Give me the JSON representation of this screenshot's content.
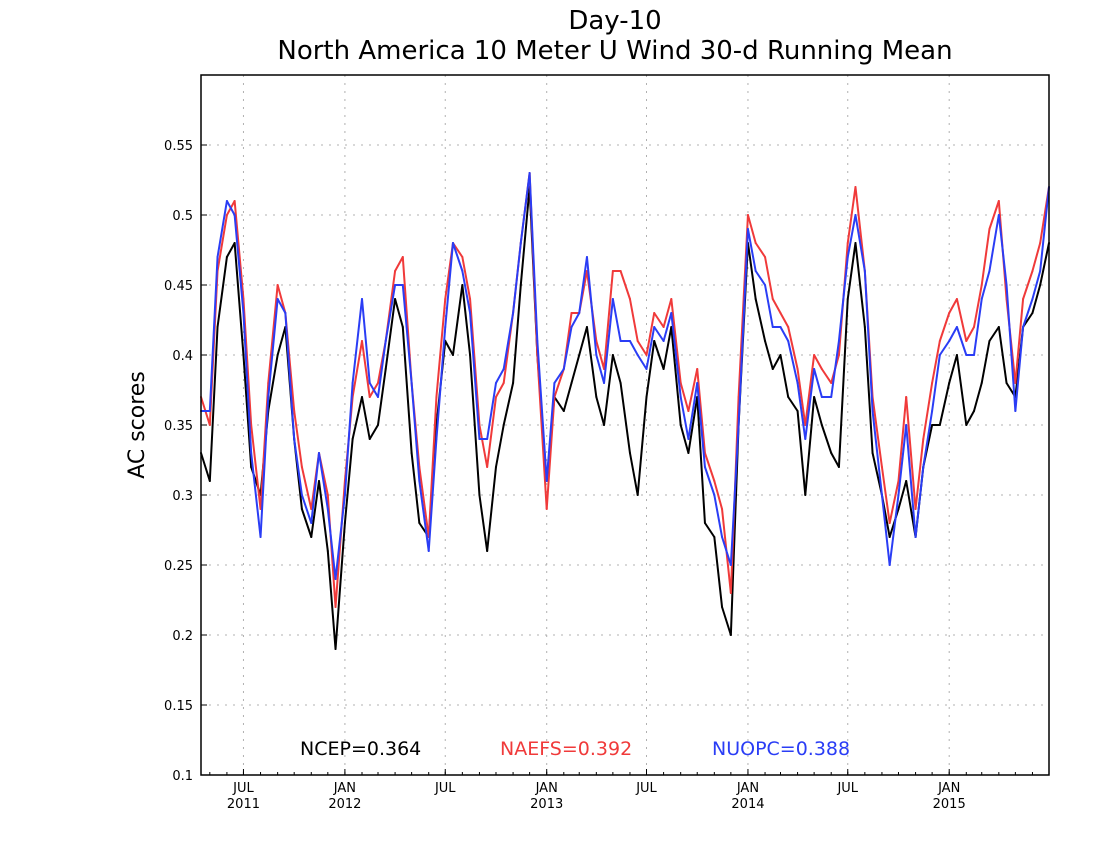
{
  "chart_data": {
    "type": "line",
    "title": "Day-10",
    "subtitle": "North America 10 Meter U Wind 30-d Running Mean",
    "ylabel": "AC scores",
    "xlabel": "",
    "ylim": [
      0.1,
      0.6
    ],
    "xlim": [
      "2011-04-15",
      "2015-07-01"
    ],
    "grid": true,
    "yticks": [
      "0.1",
      "0.15",
      "0.2",
      "0.25",
      "0.3",
      "0.35",
      "0.4",
      "0.45",
      "0.5",
      "0.55"
    ],
    "xticks": [
      {
        "date": "2011-07-01",
        "month": "JUL",
        "year": "2011"
      },
      {
        "date": "2012-01-01",
        "month": "JAN",
        "year": "2012"
      },
      {
        "date": "2012-07-01",
        "month": "JUL",
        "year": ""
      },
      {
        "date": "2013-01-01",
        "month": "JAN",
        "year": "2013"
      },
      {
        "date": "2013-07-01",
        "month": "JUL",
        "year": ""
      },
      {
        "date": "2014-01-01",
        "month": "JAN",
        "year": "2014"
      },
      {
        "date": "2014-07-01",
        "month": "JUL",
        "year": ""
      },
      {
        "date": "2015-01-01",
        "month": "JAN",
        "year": "2015"
      }
    ],
    "legend_position": "bottom-inside",
    "series": [
      {
        "name": "NCEP",
        "legend_label": "NCEP=0.364",
        "color": "#000000",
        "x": [
          "2011-04-15",
          "2011-05-01",
          "2011-05-15",
          "2011-06-01",
          "2011-06-15",
          "2011-07-01",
          "2011-07-15",
          "2011-08-01",
          "2011-08-15",
          "2011-09-01",
          "2011-09-15",
          "2011-10-01",
          "2011-10-15",
          "2011-11-01",
          "2011-11-15",
          "2011-12-01",
          "2011-12-15",
          "2012-01-01",
          "2012-01-15",
          "2012-02-01",
          "2012-02-15",
          "2012-03-01",
          "2012-03-15",
          "2012-04-01",
          "2012-04-15",
          "2012-05-01",
          "2012-05-15",
          "2012-06-01",
          "2012-06-15",
          "2012-07-01",
          "2012-07-15",
          "2012-08-01",
          "2012-08-15",
          "2012-09-01",
          "2012-09-15",
          "2012-10-01",
          "2012-10-15",
          "2012-11-01",
          "2012-11-15",
          "2012-12-01",
          "2012-12-15",
          "2013-01-01",
          "2013-01-15",
          "2013-02-01",
          "2013-02-15",
          "2013-03-01",
          "2013-03-15",
          "2013-04-01",
          "2013-04-15",
          "2013-05-01",
          "2013-05-15",
          "2013-06-01",
          "2013-06-15",
          "2013-07-01",
          "2013-07-15",
          "2013-08-01",
          "2013-08-15",
          "2013-09-01",
          "2013-09-15",
          "2013-10-01",
          "2013-10-15",
          "2013-11-01",
          "2013-11-15",
          "2013-12-01",
          "2013-12-15",
          "2014-01-01",
          "2014-01-15",
          "2014-02-01",
          "2014-02-15",
          "2014-03-01",
          "2014-03-15",
          "2014-04-01",
          "2014-04-15",
          "2014-05-01",
          "2014-05-15",
          "2014-06-01",
          "2014-06-15",
          "2014-07-01",
          "2014-07-15",
          "2014-08-01",
          "2014-08-15",
          "2014-09-01",
          "2014-09-15",
          "2014-10-01",
          "2014-10-15",
          "2014-11-01",
          "2014-11-15",
          "2014-12-01",
          "2014-12-15",
          "2015-01-01",
          "2015-01-15",
          "2015-02-01",
          "2015-02-15",
          "2015-03-01",
          "2015-03-15",
          "2015-04-01",
          "2015-04-15",
          "2015-05-01",
          "2015-05-15",
          "2015-06-01",
          "2015-06-15",
          "2015-07-01"
        ],
        "values": [
          0.33,
          0.31,
          0.42,
          0.47,
          0.48,
          0.4,
          0.32,
          0.3,
          0.36,
          0.4,
          0.42,
          0.34,
          0.29,
          0.27,
          0.31,
          0.26,
          0.19,
          0.28,
          0.34,
          0.37,
          0.34,
          0.35,
          0.39,
          0.44,
          0.42,
          0.33,
          0.28,
          0.27,
          0.35,
          0.41,
          0.4,
          0.45,
          0.4,
          0.3,
          0.26,
          0.32,
          0.35,
          0.38,
          0.45,
          0.52,
          0.4,
          0.31,
          0.37,
          0.36,
          0.38,
          0.4,
          0.42,
          0.37,
          0.35,
          0.4,
          0.38,
          0.33,
          0.3,
          0.37,
          0.41,
          0.39,
          0.42,
          0.35,
          0.33,
          0.37,
          0.28,
          0.27,
          0.22,
          0.2,
          0.35,
          0.48,
          0.44,
          0.41,
          0.39,
          0.4,
          0.37,
          0.36,
          0.3,
          0.37,
          0.35,
          0.33,
          0.32,
          0.44,
          0.48,
          0.42,
          0.33,
          0.3,
          0.27,
          0.29,
          0.31,
          0.27,
          0.32,
          0.35,
          0.35,
          0.38,
          0.4,
          0.35,
          0.36,
          0.38,
          0.41,
          0.42,
          0.38,
          0.37,
          0.42,
          0.43,
          0.45,
          0.48
        ]
      },
      {
        "name": "NAEFS",
        "legend_label": "NAEFS=0.392",
        "color": "#f03a3a",
        "x": [
          "2011-04-15",
          "2011-05-01",
          "2011-05-15",
          "2011-06-01",
          "2011-06-15",
          "2011-07-01",
          "2011-07-15",
          "2011-08-01",
          "2011-08-15",
          "2011-09-01",
          "2011-09-15",
          "2011-10-01",
          "2011-10-15",
          "2011-11-01",
          "2011-11-15",
          "2011-12-01",
          "2011-12-15",
          "2012-01-01",
          "2012-01-15",
          "2012-02-01",
          "2012-02-15",
          "2012-03-01",
          "2012-03-15",
          "2012-04-01",
          "2012-04-15",
          "2012-05-01",
          "2012-05-15",
          "2012-06-01",
          "2012-06-15",
          "2012-07-01",
          "2012-07-15",
          "2012-08-01",
          "2012-08-15",
          "2012-09-01",
          "2012-09-15",
          "2012-10-01",
          "2012-10-15",
          "2012-11-01",
          "2012-11-15",
          "2012-12-01",
          "2012-12-15",
          "2013-01-01",
          "2013-01-15",
          "2013-02-01",
          "2013-02-15",
          "2013-03-01",
          "2013-03-15",
          "2013-04-01",
          "2013-04-15",
          "2013-05-01",
          "2013-05-15",
          "2013-06-01",
          "2013-06-15",
          "2013-07-01",
          "2013-07-15",
          "2013-08-01",
          "2013-08-15",
          "2013-09-01",
          "2013-09-15",
          "2013-10-01",
          "2013-10-15",
          "2013-11-01",
          "2013-11-15",
          "2013-12-01",
          "2013-12-15",
          "2014-01-01",
          "2014-01-15",
          "2014-02-01",
          "2014-02-15",
          "2014-03-01",
          "2014-03-15",
          "2014-04-01",
          "2014-04-15",
          "2014-05-01",
          "2014-05-15",
          "2014-06-01",
          "2014-06-15",
          "2014-07-01",
          "2014-07-15",
          "2014-08-01",
          "2014-08-15",
          "2014-09-01",
          "2014-09-15",
          "2014-10-01",
          "2014-10-15",
          "2014-11-01",
          "2014-11-15",
          "2014-12-01",
          "2014-12-15",
          "2015-01-01",
          "2015-01-15",
          "2015-02-01",
          "2015-02-15",
          "2015-03-01",
          "2015-03-15",
          "2015-04-01",
          "2015-04-15",
          "2015-05-01",
          "2015-05-15",
          "2015-06-01",
          "2015-06-15",
          "2015-07-01"
        ],
        "values": [
          0.37,
          0.35,
          0.46,
          0.5,
          0.51,
          0.44,
          0.35,
          0.29,
          0.38,
          0.45,
          0.43,
          0.36,
          0.32,
          0.29,
          0.33,
          0.3,
          0.22,
          0.31,
          0.37,
          0.41,
          0.37,
          0.38,
          0.41,
          0.46,
          0.47,
          0.38,
          0.32,
          0.27,
          0.37,
          0.44,
          0.48,
          0.47,
          0.44,
          0.35,
          0.32,
          0.37,
          0.38,
          0.43,
          0.48,
          0.53,
          0.4,
          0.29,
          0.37,
          0.39,
          0.43,
          0.43,
          0.46,
          0.41,
          0.39,
          0.46,
          0.46,
          0.44,
          0.41,
          0.4,
          0.43,
          0.42,
          0.44,
          0.38,
          0.36,
          0.39,
          0.33,
          0.31,
          0.29,
          0.23,
          0.37,
          0.5,
          0.48,
          0.47,
          0.44,
          0.43,
          0.42,
          0.39,
          0.35,
          0.4,
          0.39,
          0.38,
          0.4,
          0.48,
          0.52,
          0.46,
          0.37,
          0.32,
          0.28,
          0.31,
          0.37,
          0.29,
          0.34,
          0.38,
          0.41,
          0.43,
          0.44,
          0.41,
          0.42,
          0.45,
          0.49,
          0.51,
          0.44,
          0.38,
          0.44,
          0.46,
          0.48,
          0.52
        ]
      },
      {
        "name": "NUOPC",
        "legend_label": "NUOPC=0.388",
        "color": "#2a3df5",
        "x": [
          "2011-04-15",
          "2011-05-01",
          "2011-05-15",
          "2011-06-01",
          "2011-06-15",
          "2011-07-01",
          "2011-07-15",
          "2011-08-01",
          "2011-08-15",
          "2011-09-01",
          "2011-09-15",
          "2011-10-01",
          "2011-10-15",
          "2011-11-01",
          "2011-11-15",
          "2011-12-01",
          "2011-12-15",
          "2012-01-01",
          "2012-01-15",
          "2012-02-01",
          "2012-02-15",
          "2012-03-01",
          "2012-03-15",
          "2012-04-01",
          "2012-04-15",
          "2012-05-01",
          "2012-05-15",
          "2012-06-01",
          "2012-06-15",
          "2012-07-01",
          "2012-07-15",
          "2012-08-01",
          "2012-08-15",
          "2012-09-01",
          "2012-09-15",
          "2012-10-01",
          "2012-10-15",
          "2012-11-01",
          "2012-11-15",
          "2012-12-01",
          "2012-12-15",
          "2013-01-01",
          "2013-01-15",
          "2013-02-01",
          "2013-02-15",
          "2013-03-01",
          "2013-03-15",
          "2013-04-01",
          "2013-04-15",
          "2013-05-01",
          "2013-05-15",
          "2013-06-01",
          "2013-06-15",
          "2013-07-01",
          "2013-07-15",
          "2013-08-01",
          "2013-08-15",
          "2013-09-01",
          "2013-09-15",
          "2013-10-01",
          "2013-10-15",
          "2013-11-01",
          "2013-11-15",
          "2013-12-01",
          "2013-12-15",
          "2014-01-01",
          "2014-01-15",
          "2014-02-01",
          "2014-02-15",
          "2014-03-01",
          "2014-03-15",
          "2014-04-01",
          "2014-04-15",
          "2014-05-01",
          "2014-05-15",
          "2014-06-01",
          "2014-06-15",
          "2014-07-01",
          "2014-07-15",
          "2014-08-01",
          "2014-08-15",
          "2014-09-01",
          "2014-09-15",
          "2014-10-01",
          "2014-10-15",
          "2014-11-01",
          "2014-11-15",
          "2014-12-01",
          "2014-12-15",
          "2015-01-01",
          "2015-01-15",
          "2015-02-01",
          "2015-02-15",
          "2015-03-01",
          "2015-03-15",
          "2015-04-01",
          "2015-04-15",
          "2015-05-01",
          "2015-05-15",
          "2015-06-01",
          "2015-06-15",
          "2015-07-01"
        ],
        "values": [
          0.36,
          0.36,
          0.47,
          0.51,
          0.5,
          0.43,
          0.33,
          0.27,
          0.37,
          0.44,
          0.43,
          0.34,
          0.3,
          0.28,
          0.33,
          0.29,
          0.24,
          0.3,
          0.38,
          0.44,
          0.38,
          0.37,
          0.41,
          0.45,
          0.45,
          0.38,
          0.31,
          0.26,
          0.34,
          0.42,
          0.48,
          0.46,
          0.43,
          0.34,
          0.34,
          0.38,
          0.39,
          0.43,
          0.48,
          0.53,
          0.41,
          0.31,
          0.38,
          0.39,
          0.42,
          0.43,
          0.47,
          0.4,
          0.38,
          0.44,
          0.41,
          0.41,
          0.4,
          0.39,
          0.42,
          0.41,
          0.43,
          0.37,
          0.34,
          0.38,
          0.32,
          0.3,
          0.27,
          0.25,
          0.35,
          0.49,
          0.46,
          0.45,
          0.42,
          0.42,
          0.41,
          0.38,
          0.34,
          0.39,
          0.37,
          0.37,
          0.41,
          0.47,
          0.5,
          0.46,
          0.36,
          0.3,
          0.25,
          0.3,
          0.35,
          0.27,
          0.32,
          0.36,
          0.4,
          0.41,
          0.42,
          0.4,
          0.4,
          0.44,
          0.46,
          0.5,
          0.45,
          0.36,
          0.42,
          0.44,
          0.46,
          0.52
        ]
      }
    ]
  }
}
